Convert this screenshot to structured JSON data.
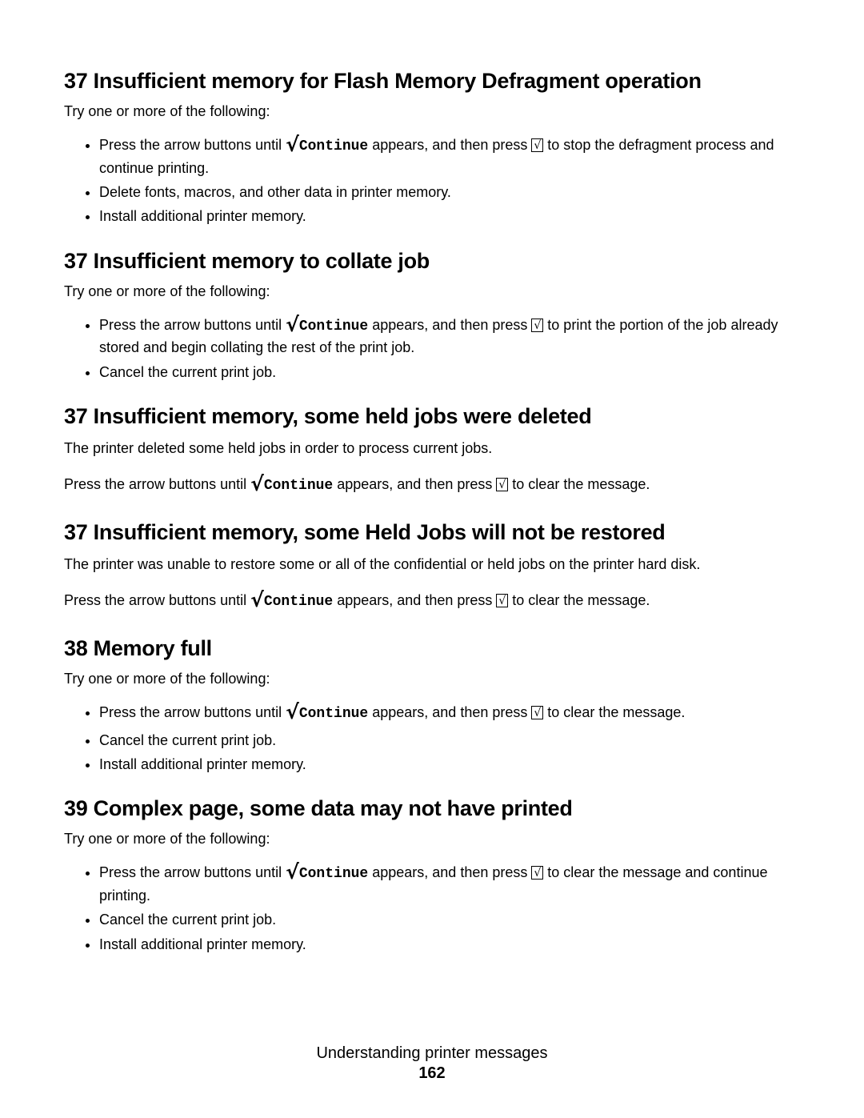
{
  "colors": {
    "text": "#000000",
    "background": "#ffffff"
  },
  "strings": {
    "tryIntro": "Try one or more of the following:",
    "pressArrowUntil": "Press the arrow buttons until ",
    "continueWord": "Continue",
    "appearsThenPress": " appears, and then press ",
    "checkGlyph": "√",
    "boxGlyph": "√"
  },
  "sections": [
    {
      "id": "s1",
      "heading": "37 Insufficient memory for Flash Memory Defragment operation",
      "intro": true,
      "bullets": [
        {
          "type": "press",
          "tail": " to stop the defragment process and continue printing."
        },
        {
          "type": "plain",
          "text": "Delete fonts, macros, and other data in printer memory."
        },
        {
          "type": "plain",
          "text": "Install additional printer memory."
        }
      ]
    },
    {
      "id": "s2",
      "heading": "37 Insufficient memory to collate job",
      "intro": true,
      "bullets": [
        {
          "type": "press",
          "tail": " to print the portion of the job already stored and begin collating the rest of the print job."
        },
        {
          "type": "plain",
          "text": "Cancel the current print job."
        }
      ]
    },
    {
      "id": "s3",
      "heading": "37 Insufficient memory, some held jobs were deleted",
      "intro": false,
      "paras": [
        {
          "type": "plain",
          "text": "The printer deleted some held jobs in order to process current jobs."
        },
        {
          "type": "press",
          "tail": " to clear the message."
        }
      ]
    },
    {
      "id": "s4",
      "heading": "37 Insufficient memory, some Held Jobs will not be restored",
      "intro": false,
      "paras": [
        {
          "type": "plain",
          "text": "The printer was unable to restore some or all of the confidential or held jobs on the printer hard disk."
        },
        {
          "type": "press",
          "tail": " to clear the message."
        }
      ]
    },
    {
      "id": "s5",
      "heading": "38 Memory full",
      "intro": true,
      "bullets": [
        {
          "type": "press",
          "tail": " to clear the message."
        },
        {
          "type": "plain",
          "text": "Cancel the current print job."
        },
        {
          "type": "plain",
          "text": "Install additional printer memory."
        }
      ]
    },
    {
      "id": "s6",
      "heading": "39 Complex page, some data may not have printed",
      "intro": true,
      "bullets": [
        {
          "type": "press",
          "tail": " to clear the message and continue printing."
        },
        {
          "type": "plain",
          "text": "Cancel the current print job."
        },
        {
          "type": "plain",
          "text": "Install additional printer memory."
        }
      ]
    }
  ],
  "footer": {
    "title": "Understanding printer messages",
    "page": "162"
  }
}
